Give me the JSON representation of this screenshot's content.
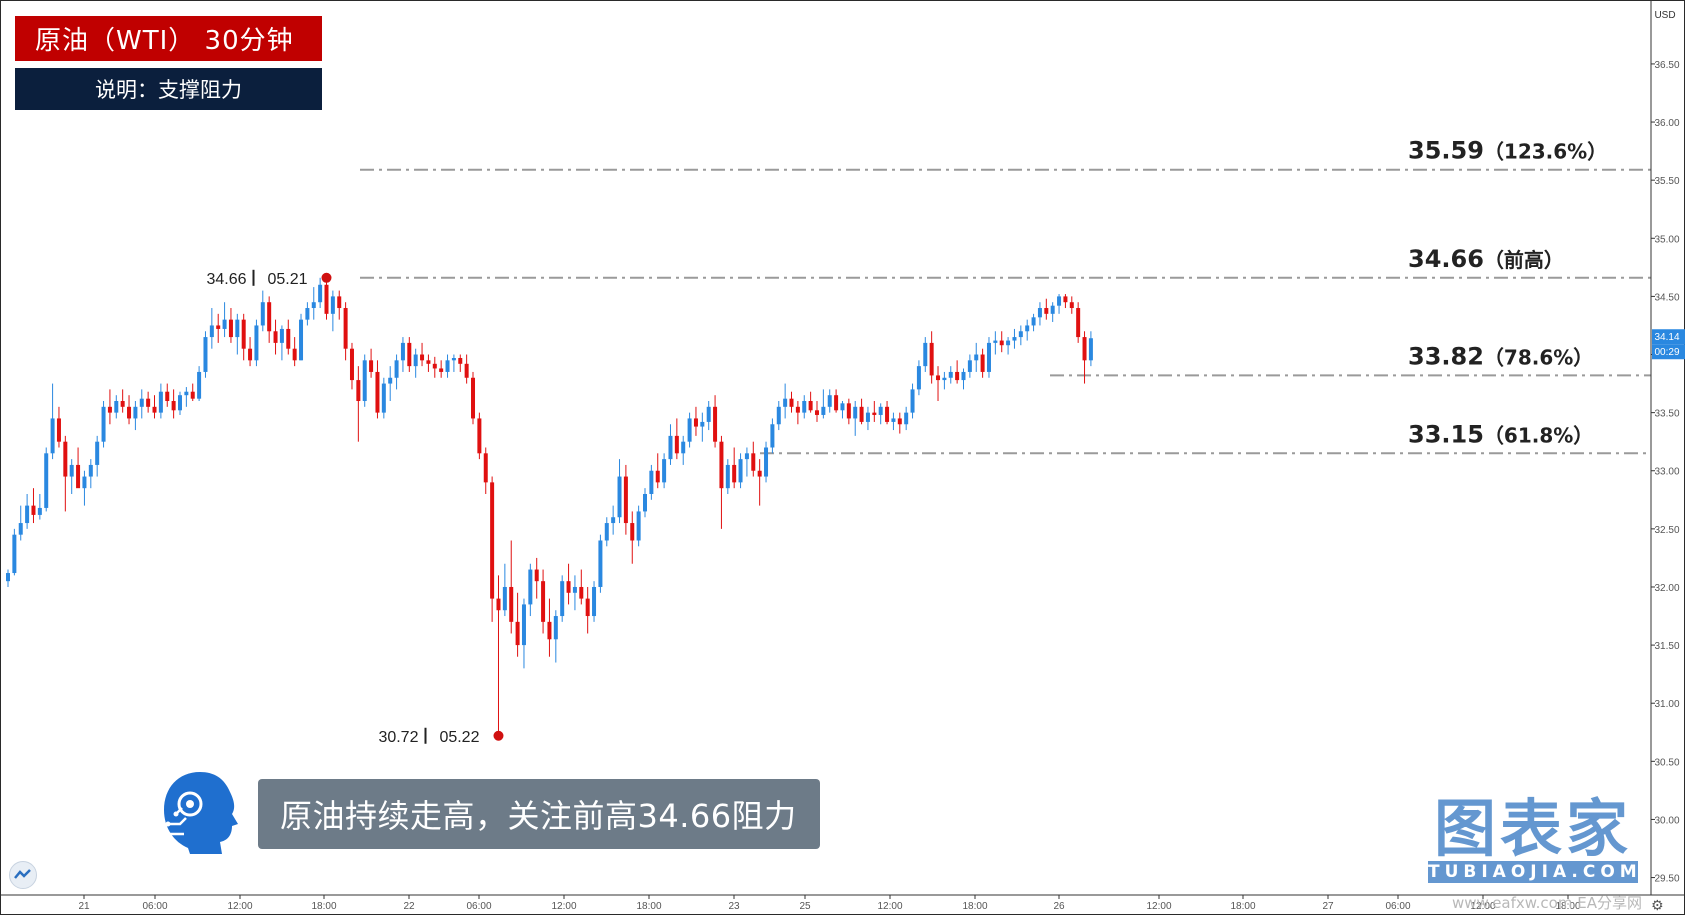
{
  "header": {
    "title": "原油（WTI） 30分钟",
    "description": "说明：支撑阻力"
  },
  "callout": {
    "text": "原油持续走高，关注前高34.66阻力"
  },
  "brand": {
    "name": "图表家",
    "sub": "TUBIAOJIA.COM"
  },
  "watermark": "www.eafxw.com EA分享网",
  "colors": {
    "up": "#2a88e0",
    "down": "#e01010",
    "level": "#9a9a9a",
    "title_bg": "#c00000",
    "desc_bg": "#0b1f3d"
  },
  "chart_data": {
    "type": "candlestick",
    "currency": "USD",
    "ylim": [
      29.35,
      37.05
    ],
    "y_ticks": [
      "29.50",
      "30.00",
      "30.50",
      "31.00",
      "31.50",
      "32.00",
      "32.50",
      "33.00",
      "33.50",
      "34.00",
      "34.50",
      "35.00",
      "35.50",
      "36.00",
      "36.50"
    ],
    "x_ticks": [
      "21",
      "06:00",
      "12:00",
      "18:00",
      "22",
      "06:00",
      "12:00",
      "18:00",
      "23",
      "25",
      "12:00",
      "18:00",
      "26",
      "12:00",
      "18:00",
      "27",
      "06:00",
      "12:00",
      "18:00"
    ],
    "current_price": "34.14",
    "countdown": "00:29",
    "levels": [
      {
        "price": 35.59,
        "label": "35.59",
        "note": "（123.6%）"
      },
      {
        "price": 34.66,
        "label": "34.66",
        "note": "（前高）"
      },
      {
        "price": 33.82,
        "label": "33.82",
        "note": "（78.6%）"
      },
      {
        "price": 33.15,
        "label": "33.15",
        "note": "（61.8%）"
      }
    ],
    "markers": [
      {
        "price": 34.66,
        "price_label": "34.66",
        "date_label": "05.21",
        "bar": 50
      },
      {
        "price": 30.72,
        "price_label": "30.72",
        "date_label": "05.22",
        "bar": 77
      }
    ],
    "candles": [
      [
        32.05,
        32.15,
        32.0,
        32.12
      ],
      [
        32.12,
        32.5,
        32.1,
        32.45
      ],
      [
        32.45,
        32.7,
        32.4,
        32.55
      ],
      [
        32.55,
        32.8,
        32.5,
        32.7
      ],
      [
        32.7,
        32.85,
        32.55,
        32.62
      ],
      [
        32.62,
        32.8,
        32.58,
        32.68
      ],
      [
        32.68,
        33.2,
        32.65,
        33.15
      ],
      [
        33.15,
        33.75,
        33.1,
        33.45
      ],
      [
        33.45,
        33.55,
        33.2,
        33.25
      ],
      [
        33.25,
        33.3,
        32.65,
        32.95
      ],
      [
        32.95,
        33.1,
        32.8,
        33.05
      ],
      [
        33.05,
        33.2,
        32.9,
        32.85
      ],
      [
        32.85,
        33.0,
        32.7,
        32.95
      ],
      [
        32.95,
        33.1,
        32.85,
        33.05
      ],
      [
        33.05,
        33.3,
        32.95,
        33.25
      ],
      [
        33.25,
        33.6,
        33.2,
        33.55
      ],
      [
        33.55,
        33.7,
        33.4,
        33.5
      ],
      [
        33.5,
        33.65,
        33.45,
        33.6
      ],
      [
        33.6,
        33.7,
        33.5,
        33.55
      ],
      [
        33.55,
        33.65,
        33.4,
        33.45
      ],
      [
        33.45,
        33.6,
        33.35,
        33.55
      ],
      [
        33.55,
        33.7,
        33.45,
        33.62
      ],
      [
        33.62,
        33.68,
        33.5,
        33.55
      ],
      [
        33.55,
        33.65,
        33.45,
        33.5
      ],
      [
        33.5,
        33.75,
        33.45,
        33.68
      ],
      [
        33.68,
        33.75,
        33.55,
        33.6
      ],
      [
        33.6,
        33.7,
        33.45,
        33.52
      ],
      [
        33.52,
        33.68,
        33.48,
        33.65
      ],
      [
        33.65,
        33.72,
        33.55,
        33.68
      ],
      [
        33.68,
        33.75,
        33.6,
        33.62
      ],
      [
        33.62,
        33.9,
        33.6,
        33.85
      ],
      [
        33.85,
        34.2,
        33.8,
        34.15
      ],
      [
        34.15,
        34.4,
        34.05,
        34.25
      ],
      [
        34.25,
        34.35,
        34.1,
        34.22
      ],
      [
        34.22,
        34.45,
        34.15,
        34.3
      ],
      [
        34.3,
        34.4,
        34.1,
        34.15
      ],
      [
        34.15,
        34.35,
        34.0,
        34.3
      ],
      [
        34.3,
        34.35,
        33.95,
        34.05
      ],
      [
        34.05,
        34.15,
        33.9,
        33.95
      ],
      [
        33.95,
        34.3,
        33.9,
        34.25
      ],
      [
        34.25,
        34.55,
        34.2,
        34.45
      ],
      [
        34.45,
        34.5,
        34.1,
        34.2
      ],
      [
        34.2,
        34.3,
        34.0,
        34.1
      ],
      [
        34.1,
        34.25,
        33.95,
        34.22
      ],
      [
        34.22,
        34.3,
        34.0,
        34.05
      ],
      [
        34.05,
        34.15,
        33.9,
        33.95
      ],
      [
        33.95,
        34.35,
        33.95,
        34.3
      ],
      [
        34.3,
        34.45,
        34.25,
        34.4
      ],
      [
        34.4,
        34.58,
        34.3,
        34.45
      ],
      [
        34.45,
        34.66,
        34.4,
        34.6
      ],
      [
        34.6,
        34.65,
        34.3,
        34.35
      ],
      [
        34.35,
        34.55,
        34.2,
        34.5
      ],
      [
        34.5,
        34.55,
        34.3,
        34.4
      ],
      [
        34.4,
        34.45,
        33.95,
        34.05
      ],
      [
        34.05,
        34.1,
        33.7,
        33.78
      ],
      [
        33.78,
        33.9,
        33.25,
        33.6
      ],
      [
        33.6,
        34.0,
        33.55,
        33.95
      ],
      [
        33.95,
        34.05,
        33.8,
        33.85
      ],
      [
        33.85,
        33.95,
        33.45,
        33.5
      ],
      [
        33.5,
        33.8,
        33.45,
        33.75
      ],
      [
        33.75,
        33.9,
        33.6,
        33.8
      ],
      [
        33.8,
        34.0,
        33.7,
        33.95
      ],
      [
        33.95,
        34.15,
        33.85,
        34.1
      ],
      [
        34.1,
        34.15,
        33.85,
        33.9
      ],
      [
        33.9,
        34.05,
        33.8,
        34.0
      ],
      [
        34.0,
        34.1,
        33.9,
        33.95
      ],
      [
        33.95,
        34.0,
        33.85,
        33.92
      ],
      [
        33.92,
        33.98,
        33.8,
        33.88
      ],
      [
        33.88,
        33.95,
        33.8,
        33.85
      ],
      [
        33.85,
        34.0,
        33.8,
        33.95
      ],
      [
        33.95,
        34.0,
        33.85,
        33.97
      ],
      [
        33.97,
        34.0,
        33.85,
        33.92
      ],
      [
        33.92,
        34.0,
        33.75,
        33.8
      ],
      [
        33.8,
        33.85,
        33.4,
        33.45
      ],
      [
        33.45,
        33.5,
        33.1,
        33.15
      ],
      [
        33.15,
        33.2,
        32.8,
        32.9
      ],
      [
        32.9,
        32.95,
        31.7,
        31.9
      ],
      [
        31.9,
        32.1,
        30.72,
        31.8
      ],
      [
        31.8,
        32.2,
        31.75,
        32.0
      ],
      [
        32.0,
        32.4,
        31.6,
        31.7
      ],
      [
        31.7,
        31.95,
        31.4,
        31.5
      ],
      [
        31.5,
        31.9,
        31.3,
        31.85
      ],
      [
        31.85,
        32.2,
        31.75,
        32.15
      ],
      [
        32.15,
        32.25,
        31.9,
        32.05
      ],
      [
        32.05,
        32.15,
        31.6,
        31.7
      ],
      [
        31.7,
        31.9,
        31.4,
        31.55
      ],
      [
        31.55,
        31.8,
        31.35,
        31.75
      ],
      [
        31.75,
        32.1,
        31.7,
        32.05
      ],
      [
        32.05,
        32.2,
        31.85,
        31.95
      ],
      [
        31.95,
        32.1,
        31.8,
        32.0
      ],
      [
        32.0,
        32.15,
        31.85,
        31.9
      ],
      [
        31.9,
        32.0,
        31.6,
        31.75
      ],
      [
        31.75,
        32.05,
        31.7,
        32.0
      ],
      [
        32.0,
        32.45,
        31.95,
        32.4
      ],
      [
        32.4,
        32.6,
        32.35,
        32.55
      ],
      [
        32.55,
        32.7,
        32.45,
        32.6
      ],
      [
        32.6,
        33.1,
        32.55,
        32.95
      ],
      [
        32.95,
        33.05,
        32.45,
        32.55
      ],
      [
        32.55,
        32.65,
        32.2,
        32.4
      ],
      [
        32.4,
        32.7,
        32.35,
        32.65
      ],
      [
        32.65,
        32.85,
        32.6,
        32.8
      ],
      [
        32.8,
        33.05,
        32.75,
        33.0
      ],
      [
        33.0,
        33.15,
        32.85,
        32.9
      ],
      [
        32.9,
        33.15,
        32.85,
        33.1
      ],
      [
        33.1,
        33.4,
        33.05,
        33.3
      ],
      [
        33.3,
        33.45,
        33.1,
        33.15
      ],
      [
        33.15,
        33.3,
        33.05,
        33.25
      ],
      [
        33.25,
        33.5,
        33.2,
        33.45
      ],
      [
        33.45,
        33.55,
        33.3,
        33.38
      ],
      [
        33.38,
        33.5,
        33.25,
        33.42
      ],
      [
        33.42,
        33.6,
        33.35,
        33.55
      ],
      [
        33.55,
        33.65,
        33.2,
        33.25
      ],
      [
        33.25,
        33.3,
        32.5,
        32.85
      ],
      [
        32.85,
        33.1,
        32.8,
        33.05
      ],
      [
        33.05,
        33.2,
        32.85,
        32.9
      ],
      [
        32.9,
        33.15,
        32.85,
        33.1
      ],
      [
        33.1,
        33.2,
        32.95,
        33.15
      ],
      [
        33.15,
        33.25,
        32.95,
        33.0
      ],
      [
        33.0,
        33.1,
        32.7,
        32.95
      ],
      [
        32.95,
        33.25,
        32.9,
        33.2
      ],
      [
        33.2,
        33.45,
        33.15,
        33.4
      ],
      [
        33.4,
        33.6,
        33.35,
        33.55
      ],
      [
        33.55,
        33.75,
        33.45,
        33.62
      ],
      [
        33.62,
        33.68,
        33.5,
        33.55
      ],
      [
        33.55,
        33.6,
        33.4,
        33.5
      ],
      [
        33.5,
        33.65,
        33.45,
        33.6
      ],
      [
        33.6,
        33.68,
        33.5,
        33.52
      ],
      [
        33.52,
        33.6,
        33.42,
        33.48
      ],
      [
        33.48,
        33.7,
        33.45,
        33.55
      ],
      [
        33.55,
        33.7,
        33.5,
        33.65
      ],
      [
        33.65,
        33.7,
        33.5,
        33.52
      ],
      [
        33.52,
        33.6,
        33.45,
        33.58
      ],
      [
        33.58,
        33.62,
        33.4,
        33.45
      ],
      [
        33.45,
        33.6,
        33.3,
        33.55
      ],
      [
        33.55,
        33.62,
        33.4,
        33.42
      ],
      [
        33.42,
        33.55,
        33.35,
        33.5
      ],
      [
        33.5,
        33.6,
        33.42,
        33.48
      ],
      [
        33.48,
        33.58,
        33.4,
        33.55
      ],
      [
        33.55,
        33.6,
        33.4,
        33.42
      ],
      [
        33.42,
        33.5,
        33.35,
        33.45
      ],
      [
        33.45,
        33.5,
        33.32,
        33.4
      ],
      [
        33.4,
        33.55,
        33.35,
        33.5
      ],
      [
        33.5,
        33.75,
        33.45,
        33.7
      ],
      [
        33.7,
        33.95,
        33.65,
        33.9
      ],
      [
        33.9,
        34.15,
        33.85,
        34.1
      ],
      [
        34.1,
        34.2,
        33.75,
        33.82
      ],
      [
        33.82,
        33.9,
        33.6,
        33.78
      ],
      [
        33.78,
        33.85,
        33.7,
        33.8
      ],
      [
        33.8,
        33.9,
        33.75,
        33.85
      ],
      [
        33.85,
        33.95,
        33.75,
        33.78
      ],
      [
        33.78,
        33.88,
        33.7,
        33.85
      ],
      [
        33.85,
        34.0,
        33.8,
        33.95
      ],
      [
        33.95,
        34.1,
        33.85,
        34.0
      ],
      [
        34.0,
        34.05,
        33.8,
        33.85
      ],
      [
        33.85,
        34.15,
        33.8,
        34.1
      ],
      [
        34.1,
        34.2,
        34.0,
        34.12
      ],
      [
        34.12,
        34.2,
        34.02,
        34.08
      ],
      [
        34.08,
        34.15,
        34.0,
        34.12
      ],
      [
        34.12,
        34.22,
        34.05,
        34.15
      ],
      [
        34.15,
        34.25,
        34.08,
        34.2
      ],
      [
        34.2,
        34.3,
        34.12,
        34.25
      ],
      [
        34.25,
        34.35,
        34.2,
        34.32
      ],
      [
        34.32,
        34.45,
        34.25,
        34.4
      ],
      [
        34.4,
        34.48,
        34.3,
        34.35
      ],
      [
        34.35,
        34.45,
        34.28,
        34.42
      ],
      [
        34.42,
        34.52,
        34.35,
        34.5
      ],
      [
        34.5,
        34.52,
        34.4,
        34.45
      ],
      [
        34.45,
        34.5,
        34.35,
        34.4
      ],
      [
        34.4,
        34.45,
        34.1,
        34.15
      ],
      [
        34.15,
        34.2,
        33.75,
        33.95
      ],
      [
        33.95,
        34.2,
        33.9,
        34.14
      ]
    ]
  }
}
